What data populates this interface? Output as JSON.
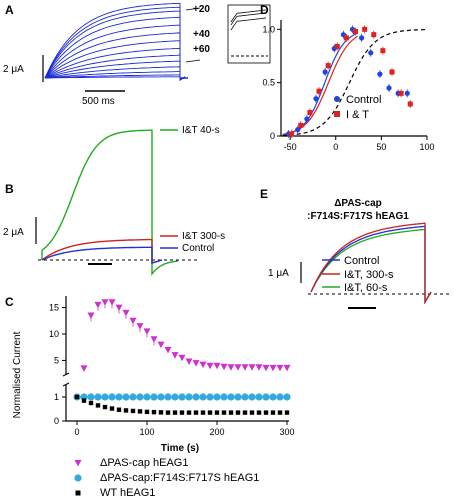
{
  "chart_data": [
    {
      "panel": "A",
      "type": "line",
      "description_values": {
        "scale_bar_y": "2 μA",
        "scale_bar_x": "500 ms",
        "inset_labels": [
          "+20",
          "+40",
          "+60"
        ]
      },
      "families": [
        {
          "name": "voltage-step traces",
          "levels": [
            0.02,
            0.05,
            0.1,
            0.17,
            0.25,
            0.33,
            0.42,
            0.52,
            0.62,
            0.72,
            0.82,
            0.9,
            0.95,
            1.0
          ]
        }
      ],
      "inset_levels": [
        1.0,
        0.85,
        0.6
      ]
    },
    {
      "panel": "B",
      "type": "line",
      "scale_bar_y": "2 μA",
      "series": [
        {
          "name": "I&T 40-s",
          "color": "#22aa22",
          "amplitude": 1.0
        },
        {
          "name": "I&T 300-s",
          "color": "#cc2222",
          "amplitude": 0.16
        },
        {
          "name": "Control",
          "color": "#2233cc",
          "amplitude": 0.1
        }
      ]
    },
    {
      "panel": "C",
      "type": "scatter",
      "xlabel": "Time (s)",
      "ylabel": "Normalised Current",
      "xlim": [
        0,
        300
      ],
      "xticks": [
        "0",
        "100",
        "200",
        "300"
      ],
      "ylim_lower": [
        0,
        1.5
      ],
      "ylim_upper": [
        3,
        17
      ],
      "yticks_lower": [
        "0",
        "1"
      ],
      "yticks_upper": [
        "5",
        "10",
        "15"
      ],
      "series": [
        {
          "name": "ΔPAS-cap hEAG1",
          "color": "#cc33cc",
          "marker": "triangle-down",
          "x": [
            10,
            20,
            30,
            40,
            50,
            60,
            70,
            80,
            90,
            100,
            110,
            120,
            130,
            140,
            150,
            160,
            170,
            180,
            190,
            200,
            210,
            220,
            230,
            240,
            250,
            260,
            270,
            280,
            290,
            300
          ],
          "y": [
            3.5,
            13.5,
            15.5,
            16.0,
            16.0,
            15.0,
            14.0,
            12.5,
            11.5,
            10.5,
            9.0,
            8.0,
            7.0,
            6.0,
            5.5,
            4.8,
            4.5,
            4.2,
            4.0,
            4.0,
            3.8,
            3.7,
            3.7,
            3.7,
            3.7,
            3.7,
            3.6,
            3.6,
            3.6,
            3.6
          ]
        },
        {
          "name": "ΔPAS-cap:F714S:F717S hEAG1",
          "color": "#33aadd",
          "marker": "circle",
          "x": [
            0,
            10,
            20,
            30,
            40,
            50,
            60,
            70,
            80,
            90,
            100,
            110,
            120,
            130,
            140,
            150,
            160,
            170,
            180,
            190,
            200,
            210,
            220,
            230,
            240,
            250,
            260,
            270,
            280,
            290,
            300
          ],
          "y": [
            1.0,
            1.0,
            1.0,
            1.0,
            1.0,
            1.0,
            1.0,
            1.0,
            1.0,
            1.0,
            1.0,
            1.0,
            1.0,
            1.0,
            1.0,
            1.0,
            1.0,
            1.0,
            1.0,
            1.0,
            1.0,
            1.0,
            1.0,
            1.0,
            1.0,
            1.0,
            1.0,
            1.0,
            1.0,
            1.0,
            1.0
          ]
        },
        {
          "name": "WT hEAG1",
          "color": "#000000",
          "marker": "square",
          "x": [
            0,
            10,
            20,
            30,
            40,
            50,
            60,
            70,
            80,
            90,
            100,
            110,
            120,
            130,
            140,
            150,
            160,
            170,
            180,
            190,
            200,
            210,
            220,
            230,
            240,
            250,
            260,
            270,
            280,
            290,
            300
          ],
          "y": [
            1.0,
            0.85,
            0.75,
            0.65,
            0.58,
            0.52,
            0.47,
            0.44,
            0.42,
            0.4,
            0.38,
            0.37,
            0.36,
            0.35,
            0.35,
            0.35,
            0.35,
            0.35,
            0.35,
            0.35,
            0.35,
            0.35,
            0.35,
            0.35,
            0.35,
            0.35,
            0.35,
            0.35,
            0.35,
            0.35,
            0.35
          ]
        }
      ]
    },
    {
      "panel": "D",
      "type": "scatter",
      "xlim": [
        -60,
        100
      ],
      "ylim": [
        0,
        1.05
      ],
      "xticks": [
        "-50",
        "0",
        "50",
        "100"
      ],
      "yticks": [
        "0",
        "0.5",
        "1.0"
      ],
      "legend": "right",
      "series": [
        {
          "name": "Control",
          "color": "#2244dd",
          "x": [
            -50,
            -40,
            -30,
            -20,
            -10,
            0,
            10,
            20,
            30,
            40,
            50,
            60,
            70,
            80
          ],
          "y": [
            0.02,
            0.06,
            0.16,
            0.35,
            0.6,
            0.82,
            0.95,
            1.0,
            0.92,
            0.78,
            0.58,
            0.45,
            0.4,
            0.4
          ]
        },
        {
          "name": "I & T",
          "color": "#dd2222",
          "x": [
            -50,
            -40,
            -30,
            -20,
            -10,
            0,
            10,
            20,
            30,
            40,
            50,
            60,
            70,
            80
          ],
          "y": [
            0.02,
            0.1,
            0.22,
            0.42,
            0.66,
            0.84,
            0.92,
            0.98,
            1.0,
            0.95,
            0.8,
            0.6,
            0.4,
            0.3
          ]
        }
      ],
      "fits": [
        {
          "color": "#2244dd",
          "style": "solid",
          "v_half": -12,
          "k": 11
        },
        {
          "color": "#dd2222",
          "style": "solid",
          "v_half": -8,
          "k": 12
        },
        {
          "color": "#000000",
          "style": "dashed",
          "v_half": 15,
          "k": 14
        }
      ]
    },
    {
      "panel": "E",
      "type": "line",
      "title": "ΔPAS-cap\n:F714S:F717S hEAG1",
      "title_lines": [
        "ΔPAS-cap",
        ":F714S:F717S hEAG1"
      ],
      "scale_bar_y": "1 μA",
      "series": [
        {
          "name": "Control",
          "color": "#2233cc",
          "amplitude": 0.95
        },
        {
          "name": "I&T, 300-s",
          "color": "#cc2222",
          "amplitude": 1.0
        },
        {
          "name": "I&T, 60-s",
          "color": "#22aa22",
          "amplitude": 0.9
        }
      ]
    }
  ]
}
